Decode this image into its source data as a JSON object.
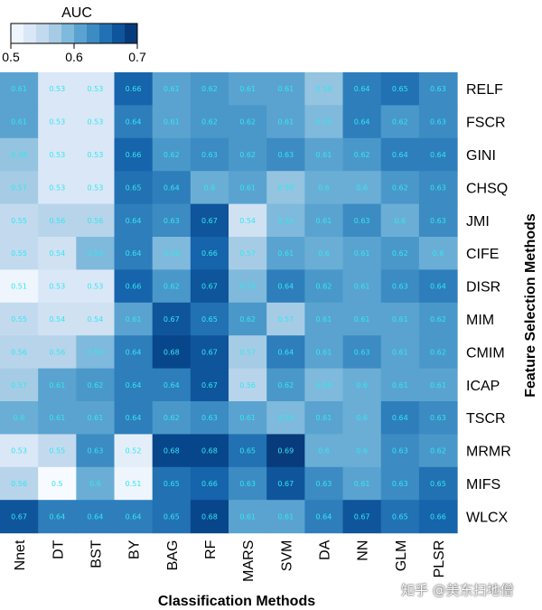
{
  "chart_data": {
    "type": "heatmap",
    "colorbar": {
      "title": "AUC",
      "min": 0.5,
      "max": 0.7,
      "ticks": [
        "0.5",
        "0.6",
        "0.7"
      ],
      "steps": 10
    },
    "xlabel": "Classification Methods",
    "ylabel": "Feature Selection Methods",
    "columns": [
      "Nnet",
      "DT",
      "BST",
      "BY",
      "BAG",
      "RF",
      "MARS",
      "SVM",
      "DA",
      "NN",
      "GLM",
      "PLSR"
    ],
    "rows": [
      "RELF",
      "FSCR",
      "GINI",
      "CHSQ",
      "JMI",
      "CIFE",
      "DISR",
      "MIM",
      "CMIM",
      "ICAP",
      "TSCR",
      "MRMR",
      "MIFS",
      "WLCX"
    ],
    "values": [
      [
        "0.61",
        "0.53",
        "0.53",
        "0.66",
        "0.61",
        "0.62",
        "0.61",
        "0.61",
        "0.58",
        "0.64",
        "0.65",
        "0.63"
      ],
      [
        "0.61",
        "0.53",
        "0.53",
        "0.64",
        "0.61",
        "0.62",
        "0.62",
        "0.61",
        "0.59",
        "0.64",
        "0.62",
        "0.63"
      ],
      [
        "0.58",
        "0.53",
        "0.53",
        "0.66",
        "0.62",
        "0.63",
        "0.62",
        "0.63",
        "0.61",
        "0.62",
        "0.64",
        "0.64"
      ],
      [
        "0.57",
        "0.53",
        "0.53",
        "0.65",
        "0.64",
        "0.6",
        "0.61",
        "0.58",
        "0.6",
        "0.6",
        "0.62",
        "0.63"
      ],
      [
        "0.55",
        "0.56",
        "0.56",
        "0.64",
        "0.63",
        "0.67",
        "0.54",
        "0.59",
        "0.61",
        "0.63",
        "0.6",
        "0.63"
      ],
      [
        "0.55",
        "0.54",
        "0.59",
        "0.64",
        "0.59",
        "0.66",
        "0.57",
        "0.61",
        "0.6",
        "0.61",
        "0.62",
        "0.6"
      ],
      [
        "0.51",
        "0.53",
        "0.53",
        "0.66",
        "0.62",
        "0.67",
        "0.59",
        "0.64",
        "0.62",
        "0.61",
        "0.63",
        "0.64"
      ],
      [
        "0.55",
        "0.54",
        "0.54",
        "0.61",
        "0.67",
        "0.65",
        "0.62",
        "0.57",
        "0.61",
        "0.61",
        "0.61",
        "0.62"
      ],
      [
        "0.56",
        "0.56",
        "0.59",
        "0.64",
        "0.68",
        "0.67",
        "0.57",
        "0.64",
        "0.61",
        "0.63",
        "0.61",
        "0.62"
      ],
      [
        "0.57",
        "0.61",
        "0.62",
        "0.64",
        "0.64",
        "0.67",
        "0.56",
        "0.62",
        "0.59",
        "0.6",
        "0.61",
        "0.61"
      ],
      [
        "0.6",
        "0.61",
        "0.61",
        "0.64",
        "0.62",
        "0.63",
        "0.61",
        "0.59",
        "0.61",
        "0.6",
        "0.64",
        "0.63"
      ],
      [
        "0.53",
        "0.55",
        "0.63",
        "0.52",
        "0.68",
        "0.68",
        "0.65",
        "0.69",
        "0.6",
        "0.6",
        "0.63",
        "0.62"
      ],
      [
        "0.56",
        "0.5",
        "0.6",
        "0.51",
        "0.65",
        "0.66",
        "0.63",
        "0.67",
        "0.63",
        "0.61",
        "0.63",
        "0.65"
      ],
      [
        "0.67",
        "0.64",
        "0.64",
        "0.64",
        "0.65",
        "0.68",
        "0.61",
        "0.61",
        "0.64",
        "0.67",
        "0.65",
        "0.66"
      ]
    ]
  },
  "watermark": "知乎 @美东扫地僧",
  "palette": [
    "#f7fbff",
    "#e4eef9",
    "#d0e1f2",
    "#b7d4ea",
    "#94c4df",
    "#6aaed6",
    "#4a98c9",
    "#2e7ebc",
    "#1664ab",
    "#08468b",
    "#08306b"
  ]
}
